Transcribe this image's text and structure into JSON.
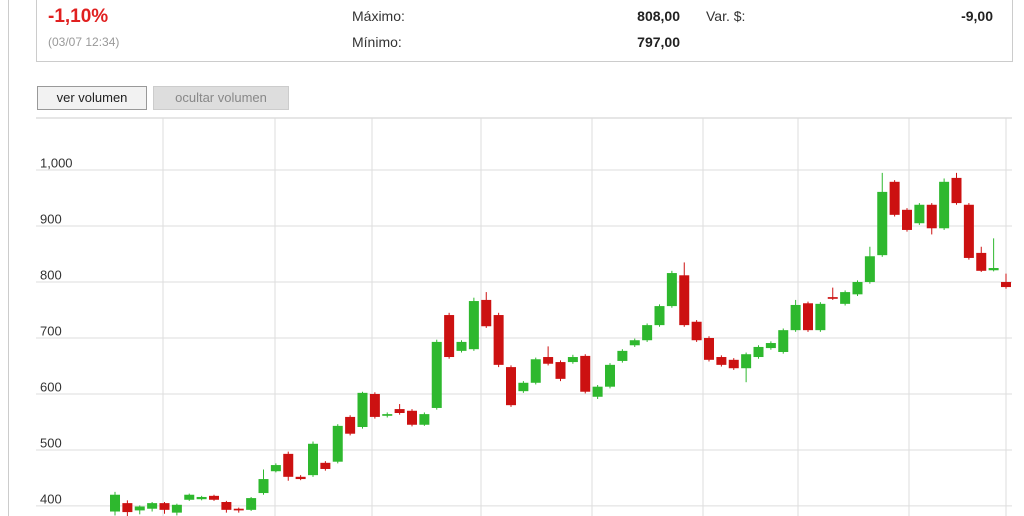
{
  "header": {
    "change": "-1,10%",
    "timestamp": "(03/07 12:34)",
    "stats": [
      {
        "label": "Máximo:",
        "value": "808,00"
      },
      {
        "label": "Mínimo:",
        "value": "797,00"
      },
      {
        "label": "Var. $:",
        "value": "-9,00"
      }
    ]
  },
  "buttons": [
    "ver volumen",
    "ocultar volumen"
  ],
  "chart_data": {
    "type": "candlestick",
    "categories": [
      null,
      null,
      null,
      null,
      null,
      null,
      null,
      null,
      null,
      null,
      null,
      null,
      null,
      null,
      null,
      null,
      null,
      null,
      null,
      null,
      null,
      null,
      null,
      null,
      null,
      null,
      null,
      null,
      null,
      null,
      null,
      null,
      null,
      null,
      null,
      null,
      null,
      null,
      null,
      null,
      null,
      null,
      null,
      null,
      null,
      null,
      null,
      null,
      null,
      null,
      null,
      null,
      null,
      null,
      null,
      null,
      null,
      null,
      null,
      null,
      null,
      null,
      null,
      null,
      null,
      null,
      null,
      null,
      null,
      null,
      null,
      null,
      null
    ],
    "open": [
      390,
      405,
      392,
      395,
      405,
      388,
      411,
      412,
      418,
      407,
      395,
      393,
      423,
      462,
      493,
      452,
      455,
      477,
      479,
      559,
      541,
      600,
      561,
      573,
      570,
      545,
      575,
      741,
      677,
      680,
      768,
      741,
      648,
      605,
      620,
      666,
      657,
      657,
      668,
      595,
      613,
      659,
      687,
      696,
      723,
      757,
      812,
      729,
      700,
      666,
      661,
      646,
      666,
      682,
      675,
      714,
      762,
      714,
      773,
      761,
      778,
      800,
      848,
      979,
      929,
      905,
      938,
      896,
      986,
      938,
      852,
      821,
      800
    ],
    "high": [
      425,
      410,
      401,
      407,
      407,
      404,
      422,
      418,
      420,
      409,
      397,
      416,
      465,
      476,
      497,
      455,
      515,
      480,
      546,
      562,
      604,
      603,
      567,
      582,
      573,
      567,
      697,
      745,
      696,
      772,
      782,
      745,
      651,
      623,
      665,
      685,
      660,
      670,
      671,
      616,
      655,
      680,
      699,
      726,
      760,
      820,
      835,
      732,
      703,
      669,
      664,
      674,
      687,
      694,
      717,
      768,
      765,
      764,
      790,
      785,
      803,
      863,
      995,
      982,
      932,
      941,
      941,
      985,
      995,
      941,
      863,
      878,
      815
    ],
    "low": [
      383,
      382,
      385,
      390,
      386,
      383,
      409,
      410,
      409,
      388,
      388,
      391,
      420,
      460,
      445,
      446,
      452,
      463,
      476,
      526,
      538,
      556,
      558,
      563,
      542,
      543,
      572,
      663,
      674,
      677,
      718,
      648,
      577,
      602,
      617,
      651,
      623,
      654,
      601,
      591,
      610,
      656,
      684,
      693,
      720,
      754,
      720,
      693,
      658,
      649,
      643,
      621,
      663,
      679,
      672,
      711,
      711,
      711,
      768,
      758,
      775,
      797,
      845,
      917,
      890,
      902,
      885,
      893,
      938,
      840,
      818,
      819,
      788
    ],
    "close": [
      420,
      389,
      399,
      405,
      393,
      402,
      420,
      416,
      411,
      393,
      392,
      414,
      448,
      473,
      452,
      448,
      511,
      466,
      543,
      529,
      602,
      559,
      564,
      566,
      545,
      564,
      693,
      666,
      693,
      766,
      721,
      652,
      580,
      620,
      662,
      654,
      627,
      666,
      604,
      613,
      652,
      677,
      696,
      723,
      757,
      816,
      723,
      696,
      661,
      652,
      646,
      671,
      684,
      691,
      714,
      759,
      714,
      761,
      770,
      782,
      800,
      846,
      961,
      920,
      893,
      938,
      896,
      979,
      941,
      843,
      820,
      825,
      791
    ],
    "up_color": "#2eb82e",
    "down_color": "#cc1111",
    "ylim": [
      382,
      1093
    ],
    "yticks": [
      400,
      500,
      600,
      700,
      800,
      900,
      {
        "value": 1000,
        "label": "1,000"
      }
    ],
    "grid": true
  }
}
